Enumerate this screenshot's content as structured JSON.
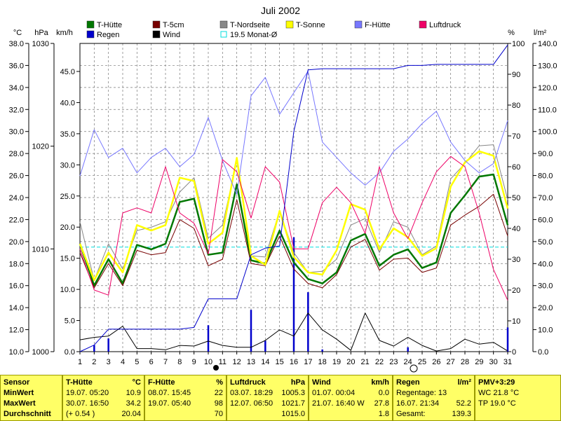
{
  "chart_data": {
    "type": "line",
    "title": "Juli 2002",
    "x_ticks": [
      "1",
      "2",
      "3",
      "4",
      "5",
      "6",
      "7",
      "8",
      "9",
      "10",
      "11",
      "12",
      "13",
      "14",
      "15",
      "16",
      "17",
      "18",
      "19",
      "20",
      "21",
      "22",
      "23",
      "24",
      "25",
      "26",
      "27",
      "28",
      "29",
      "30",
      "31"
    ],
    "axis_units": {
      "temp": "°C",
      "hpa": "hPa",
      "kmh": "km/h",
      "percent": "%",
      "rain": "l/m²"
    },
    "axes": {
      "temp": {
        "ylim": [
          10,
          38
        ],
        "ticks": [
          "10.0",
          "12.0",
          "14.0",
          "16.0",
          "18.0",
          "20.0",
          "22.0",
          "24.0",
          "26.0",
          "28.0",
          "30.0",
          "32.0",
          "34.0",
          "36.0",
          "38.0"
        ]
      },
      "hpa": {
        "ylim": [
          1000,
          1030
        ],
        "ticks": [
          "1000",
          "1010",
          "1020",
          "1030"
        ]
      },
      "kmh": {
        "ylim": [
          0,
          49.5
        ],
        "ticks": [
          "0.0",
          "5.0",
          "10.0",
          "15.0",
          "20.0",
          "25.0",
          "30.0",
          "35.0",
          "40.0",
          "45.0"
        ]
      },
      "percent": {
        "ylim": [
          0,
          100
        ],
        "ticks": [
          "0",
          "10",
          "20",
          "30",
          "40",
          "50",
          "60",
          "70",
          "80",
          "90",
          "100"
        ]
      },
      "rain": {
        "ylim": [
          0,
          140
        ],
        "ticks": [
          "0.0",
          "10.0",
          "20.0",
          "30.0",
          "40.0",
          "50.0",
          "60.0",
          "70.0",
          "80.0",
          "90.0",
          "100.0",
          "110.0",
          "120.0",
          "130.0",
          "140.0"
        ]
      }
    },
    "grid": true,
    "legend": [
      {
        "label": "T-Hütte",
        "color": "#007700"
      },
      {
        "label": "T-5cm",
        "color": "#770000"
      },
      {
        "label": "T-Nordseite",
        "color": "#888888"
      },
      {
        "label": "T-Sonne",
        "color": "#ffff00"
      },
      {
        "label": "F-Hütte",
        "color": "#7777ff"
      },
      {
        "label": "Luftdruck",
        "color": "#ee0066"
      },
      {
        "label": "Regen",
        "color": "#0000cc"
      },
      {
        "label": "Wind",
        "color": "#000000"
      },
      {
        "label": "19.5 Monat-Ø",
        "color": "#00dddd",
        "outline": true
      }
    ],
    "series": [
      {
        "key": "t_huette",
        "axis": "temp",
        "color": "#007700",
        "width": 2.5,
        "values": [
          19.8,
          16.0,
          18.4,
          16.2,
          19.7,
          19.3,
          19.8,
          23.6,
          23.9,
          18.8,
          19.0,
          25.2,
          18.3,
          18.0,
          21.0,
          18.1,
          16.6,
          16.2,
          17.2,
          20.1,
          20.7,
          17.8,
          18.8,
          19.3,
          17.6,
          18.1,
          22.6,
          24.2,
          25.9,
          26.1,
          21.5
        ]
      },
      {
        "key": "t_5cm",
        "axis": "temp",
        "color": "#770000",
        "width": 1,
        "values": [
          19.0,
          15.8,
          18.0,
          16.0,
          19.2,
          18.8,
          19.0,
          22.0,
          21.2,
          17.8,
          18.4,
          23.8,
          18.0,
          17.8,
          20.5,
          17.5,
          16.2,
          15.8,
          17.0,
          19.5,
          20.2,
          17.4,
          18.4,
          18.5,
          17.2,
          17.6,
          21.5,
          22.4,
          23.2,
          24.3,
          20.5
        ]
      },
      {
        "key": "t_nordseite",
        "axis": "temp",
        "color": "#888888",
        "width": 1,
        "values": [
          21.8,
          16.5,
          19.8,
          17.5,
          21.0,
          21.3,
          21.8,
          24.5,
          25.8,
          20.3,
          21.5,
          27.3,
          18.7,
          18.6,
          22.8,
          19.0,
          17.2,
          17.3,
          18.4,
          21.5,
          22.1,
          19.0,
          21.8,
          21.3,
          18.8,
          19.6,
          25.7,
          27.1,
          28.7,
          28.8,
          23.8
        ]
      },
      {
        "key": "t_sonne",
        "axis": "temp",
        "color": "#ffff00",
        "width": 2.5,
        "values": [
          19.8,
          16.5,
          19.0,
          17.2,
          21.5,
          21.0,
          21.5,
          25.8,
          25.5,
          19.8,
          20.8,
          27.6,
          18.7,
          17.9,
          22.8,
          18.6,
          17.2,
          17.0,
          19.2,
          23.4,
          22.9,
          19.3,
          21.2,
          20.4,
          18.7,
          19.4,
          25.0,
          27.2,
          28.2,
          27.8,
          23.0
        ]
      },
      {
        "key": "f_huette",
        "axis": "percent",
        "color": "#7777ff",
        "width": 1,
        "values": [
          57,
          72,
          63,
          66,
          58,
          63,
          66,
          60,
          64,
          76,
          62,
          51,
          83,
          89,
          77,
          84,
          91,
          68,
          63,
          58,
          54,
          58,
          65,
          69,
          74,
          78,
          68,
          62,
          58,
          61,
          75
        ]
      },
      {
        "key": "luftdruck",
        "axis": "hpa",
        "color": "#ee0066",
        "width": 1,
        "values": [
          1010.0,
          1006.0,
          1005.5,
          1013.5,
          1014.0,
          1013.5,
          1018.0,
          1013.5,
          1012.5,
          1009.5,
          1018.7,
          1017.5,
          1013.0,
          1018.0,
          1016.5,
          1010.0,
          1010.0,
          1014.5,
          1016.0,
          1014.5,
          1011.5,
          1018.0,
          1013.5,
          1011.0,
          1014.5,
          1017.5,
          1019.0,
          1018.0,
          1013.5,
          1008.0,
          1005.0
        ]
      },
      {
        "key": "wind",
        "axis": "kmh",
        "color": "#000000",
        "width": 1,
        "values": [
          1.9,
          2.3,
          2.5,
          4.1,
          0.5,
          0.5,
          0.3,
          1.0,
          0.9,
          1.7,
          1.0,
          0.7,
          0.7,
          1.8,
          3.5,
          2.5,
          6.2,
          3.5,
          2.0,
          0.2,
          6.2,
          1.8,
          0.9,
          2.3,
          1.0,
          0.1,
          0.5,
          2.0,
          1.2,
          1.5,
          0.1
        ]
      },
      {
        "key": "regen_sum",
        "axis": "rain",
        "color": "#0000cc",
        "width": 1,
        "values": [
          0,
          3,
          10.2,
          10.2,
          10.2,
          10.2,
          10.2,
          10.2,
          11,
          24,
          24,
          24,
          44,
          47,
          48,
          100,
          128,
          128.5,
          128.5,
          128.5,
          128.5,
          128.5,
          128.5,
          130,
          130,
          130.5,
          130.5,
          130.5,
          130.5,
          130.5,
          139.3
        ],
        "end_value": 139.3
      }
    ],
    "bars": {
      "key": "regen_day",
      "axis": "rain",
      "color": "#0000cc",
      "values": [
        0,
        3,
        6,
        0,
        0,
        0,
        0,
        0,
        0,
        12,
        0,
        0,
        19,
        5,
        0,
        52,
        27,
        1,
        0,
        0,
        0,
        0,
        0,
        2,
        0,
        0,
        0,
        0,
        0,
        0,
        11
      ]
    },
    "reference_line": {
      "axis": "temp",
      "value": 19.5,
      "color": "#00dddd"
    }
  },
  "stats": {
    "sensor": {
      "title": "Sensor",
      "rows": [
        "MinWert",
        "MaxWert",
        "Durchschnitt"
      ]
    },
    "t_huette": {
      "title": "T-Hütte",
      "unit": "°C",
      "rows": [
        [
          "19.07.  05:20",
          "10.9"
        ],
        [
          "30.07.  16:50",
          "34.2"
        ],
        [
          "(+ 0.54 )",
          "20.04"
        ]
      ]
    },
    "f_huette": {
      "title": "F-Hütte",
      "unit": "%",
      "rows": [
        [
          "08.07.  15:45",
          "22"
        ],
        [
          "19.07.  05:40",
          "98"
        ],
        [
          "",
          "70"
        ]
      ]
    },
    "luftdruck": {
      "title": "Luftdruck",
      "unit": "hPa",
      "rows": [
        [
          "03.07.  18:29",
          "1005.3"
        ],
        [
          "12.07.  06:50",
          "1021.7"
        ],
        [
          "",
          "1015.0"
        ]
      ]
    },
    "wind": {
      "title": "Wind",
      "unit": "km/h",
      "rows": [
        [
          "01.07.  00:04",
          "0.0"
        ],
        [
          "21.07.  16:40  W",
          "27.8"
        ],
        [
          "",
          "1.8"
        ]
      ]
    },
    "regen": {
      "title": "Regen",
      "unit": "l/m²",
      "rows": [
        [
          "Regentage: 13",
          ""
        ],
        [
          "16.07.  21:34",
          "52.2"
        ],
        [
          "Gesamt:",
          "139.3"
        ]
      ]
    },
    "pmv": {
      "title": "PMV+3:29",
      "rows": [
        "WC 21.8 °C",
        "TP 19.0 °C"
      ]
    }
  }
}
